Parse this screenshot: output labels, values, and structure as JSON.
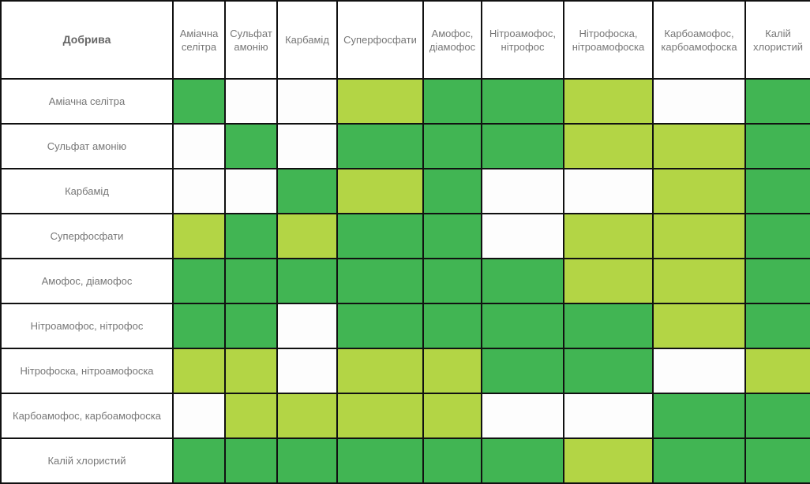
{
  "chart_data": {
    "type": "table",
    "corner_label": "Добрива",
    "columns": [
      "Аміачна\nселітра",
      "Сульфат\nамонію",
      "Карбамід",
      "Суперфосфати",
      "Амофос,\nдіамофос",
      "Нітроамофос,\nнітрофос",
      "Нітрофоска,\nнітроамофоска",
      "Карбоамофос,\nкарбоамофоска",
      "Калій\nхлористий"
    ],
    "rows": [
      "Аміачна селітра",
      "Сульфат амонію",
      "Карбамід",
      "Суперфосфати",
      "Амофос, діамофос",
      "Нітроамофос, нітрофос",
      "Нітрофоска, нітроамофоска",
      "Карбоамофос, карбоамофоска",
      "Калій хлористий"
    ],
    "colors": {
      "G": "#41b553",
      "L": "#b3d545",
      "W": "#fdfdfd"
    },
    "cells": [
      [
        "G",
        "W",
        "W",
        "L",
        "G",
        "G",
        "L",
        "W",
        "G"
      ],
      [
        "W",
        "G",
        "W",
        "G",
        "G",
        "G",
        "L",
        "L",
        "G"
      ],
      [
        "W",
        "W",
        "G",
        "L",
        "G",
        "W",
        "W",
        "L",
        "G"
      ],
      [
        "L",
        "G",
        "L",
        "G",
        "G",
        "W",
        "L",
        "L",
        "G"
      ],
      [
        "G",
        "G",
        "G",
        "G",
        "G",
        "G",
        "L",
        "L",
        "G"
      ],
      [
        "G",
        "G",
        "W",
        "G",
        "G",
        "G",
        "G",
        "L",
        "G"
      ],
      [
        "L",
        "L",
        "W",
        "L",
        "L",
        "G",
        "G",
        "W",
        "L"
      ],
      [
        "W",
        "L",
        "L",
        "L",
        "L",
        "W",
        "W",
        "G",
        "G"
      ],
      [
        "G",
        "G",
        "G",
        "G",
        "G",
        "G",
        "L",
        "G",
        "G"
      ]
    ]
  }
}
